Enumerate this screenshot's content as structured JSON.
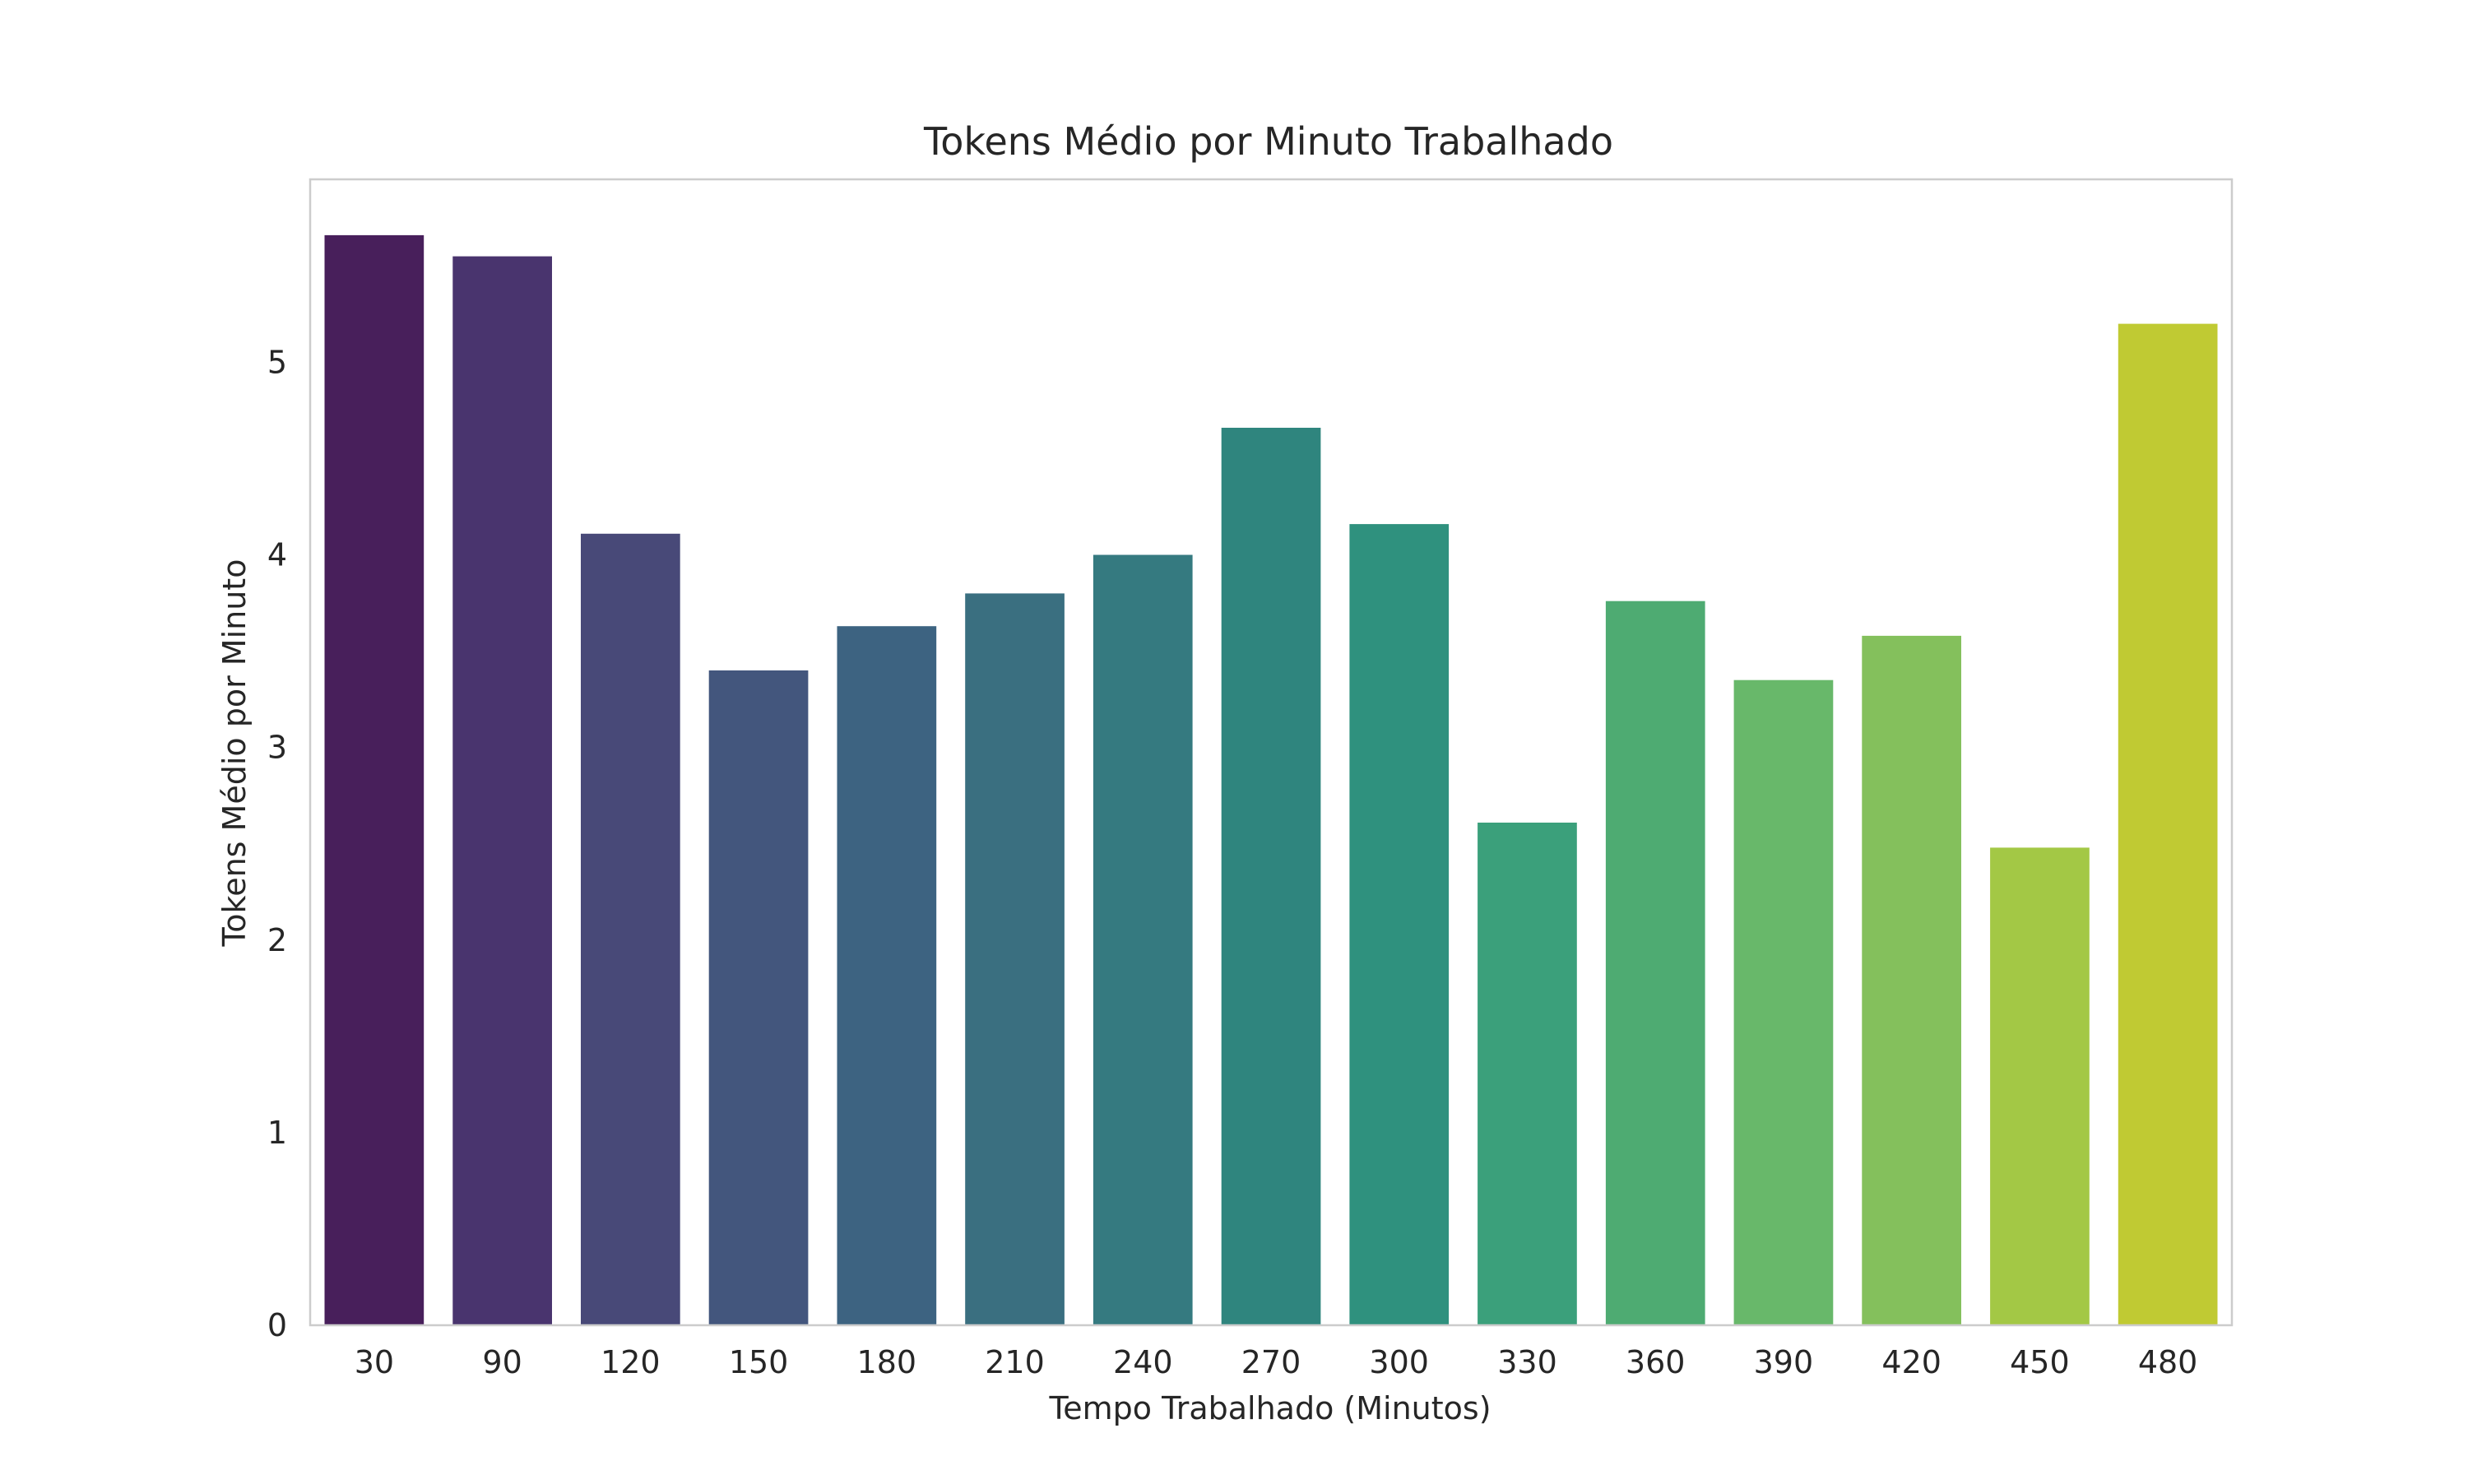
{
  "chart_data": {
    "type": "bar",
    "title": "Tokens Médio por Minuto Trabalhado",
    "xlabel": "Tempo Trabalhado (Minutos)",
    "ylabel": "Tokens Médio por Minuto",
    "categories": [
      "30",
      "90",
      "120",
      "150",
      "180",
      "210",
      "240",
      "270",
      "300",
      "330",
      "360",
      "390",
      "420",
      "450",
      "480"
    ],
    "values": [
      5.66,
      5.55,
      4.11,
      3.4,
      3.63,
      3.8,
      4.0,
      4.66,
      4.16,
      2.61,
      3.76,
      3.35,
      3.58,
      2.48,
      5.2
    ],
    "colors": [
      "#481f5b",
      "#49346e",
      "#484978",
      "#43567d",
      "#3d6381",
      "#3a6f80",
      "#357a80",
      "#2f857e",
      "#2f917e",
      "#3ba07b",
      "#4eab72",
      "#68b86a",
      "#84c05c",
      "#a3c845",
      "#c0ca33"
    ],
    "yticks": [
      0,
      1,
      2,
      3,
      4,
      5
    ],
    "ylim": [
      0,
      5.95
    ],
    "grid": false,
    "legend": "none"
  }
}
